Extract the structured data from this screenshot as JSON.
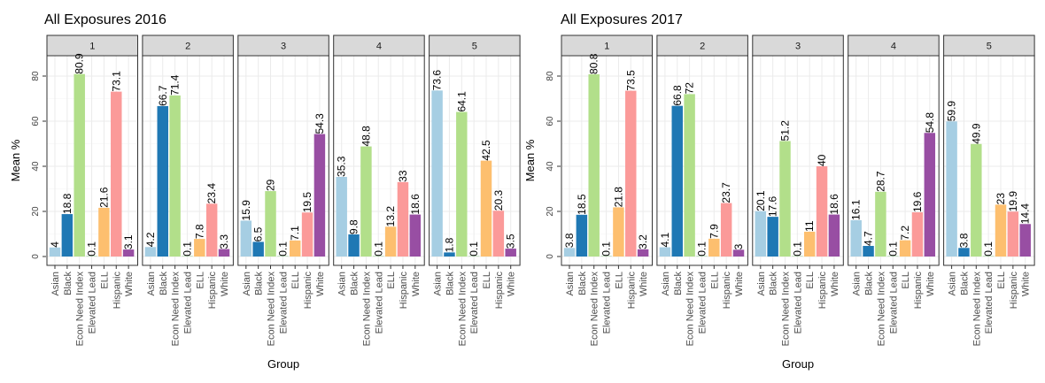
{
  "chart_data": [
    {
      "type": "bar",
      "title": "All Exposures 2016",
      "xlabel": "Group",
      "ylabel": "Mean %",
      "ylim": [
        0,
        85
      ],
      "yticks": [
        0,
        20,
        40,
        60,
        80
      ],
      "categories": [
        "Asian",
        "Black",
        "Econ Need Index",
        "Elevated Lead",
        "ELL",
        "Hispanic",
        "White"
      ],
      "colors": [
        "#a6cee3",
        "#1f78b4",
        "#b2df8a",
        "#33a02c",
        "#fdbf6f",
        "#fb9a99",
        "#984ea3"
      ],
      "grid": true,
      "facets": [
        {
          "name": "1",
          "values": [
            4,
            18.8,
            80.9,
            0.1,
            21.6,
            73.1,
            3.1
          ],
          "labels": [
            "4",
            "18.8",
            "80.9",
            "0.1",
            "21.6",
            "73.1",
            "3.1"
          ]
        },
        {
          "name": "2",
          "values": [
            4.2,
            66.7,
            71.4,
            0.1,
            7.8,
            23.4,
            3.3
          ],
          "labels": [
            "4.2",
            "66.7",
            "71.4",
            "0.1",
            "7.8",
            "23.4",
            "3.3"
          ]
        },
        {
          "name": "3",
          "values": [
            15.9,
            6.5,
            29,
            0.1,
            7.1,
            19.5,
            54.3
          ],
          "labels": [
            "15.9",
            "6.5",
            "29",
            "0.1",
            "7.1",
            "19.5",
            "54.3"
          ]
        },
        {
          "name": "4",
          "values": [
            35.3,
            9.8,
            48.8,
            0.1,
            13.2,
            33,
            18.6
          ],
          "labels": [
            "35.3",
            "9.8",
            "48.8",
            "0.1",
            "13.2",
            "33",
            "18.6"
          ]
        },
        {
          "name": "5",
          "values": [
            73.6,
            1.8,
            64.1,
            0.1,
            42.5,
            20.3,
            3.5
          ],
          "labels": [
            "73.6",
            "1.8",
            "64.1",
            "0.1",
            "42.5",
            "20.3",
            "3.5"
          ]
        }
      ]
    },
    {
      "type": "bar",
      "title": "All Exposures 2017",
      "xlabel": "Group",
      "ylabel": "Mean %",
      "ylim": [
        0,
        85
      ],
      "yticks": [
        0,
        20,
        40,
        60,
        80
      ],
      "categories": [
        "Asian",
        "Black",
        "Econ Need Index",
        "Elevated Lead",
        "ELL",
        "Hispanic",
        "White"
      ],
      "colors": [
        "#a6cee3",
        "#1f78b4",
        "#b2df8a",
        "#33a02c",
        "#fdbf6f",
        "#fb9a99",
        "#984ea3"
      ],
      "grid": true,
      "facets": [
        {
          "name": "1",
          "values": [
            3.8,
            18.5,
            80.8,
            0.1,
            21.8,
            73.5,
            3.2
          ],
          "labels": [
            "3.8",
            "18.5",
            "80.8",
            "0.1",
            "21.8",
            "73.5",
            "3.2"
          ]
        },
        {
          "name": "2",
          "values": [
            4.1,
            66.8,
            72,
            0.1,
            7.9,
            23.7,
            3
          ],
          "labels": [
            "4.1",
            "66.8",
            "72",
            "0.1",
            "7.9",
            "23.7",
            "3"
          ]
        },
        {
          "name": "3",
          "values": [
            20.1,
            17.6,
            51.2,
            0.1,
            11,
            40,
            18.6
          ],
          "labels": [
            "20.1",
            "17.6",
            "51.2",
            "0.1",
            "11",
            "40",
            "18.6"
          ]
        },
        {
          "name": "4",
          "values": [
            16.1,
            4.7,
            28.7,
            0.1,
            7.2,
            19.6,
            54.8
          ],
          "labels": [
            "16.1",
            "4.7",
            "28.7",
            "0.1",
            "7.2",
            "19.6",
            "54.8"
          ]
        },
        {
          "name": "5",
          "values": [
            59.9,
            3.8,
            49.9,
            0.1,
            23,
            19.9,
            14.4
          ],
          "labels": [
            "59.9",
            "3.8",
            "49.9",
            "0.1",
            "23",
            "19.9",
            "14.4"
          ]
        }
      ]
    }
  ]
}
